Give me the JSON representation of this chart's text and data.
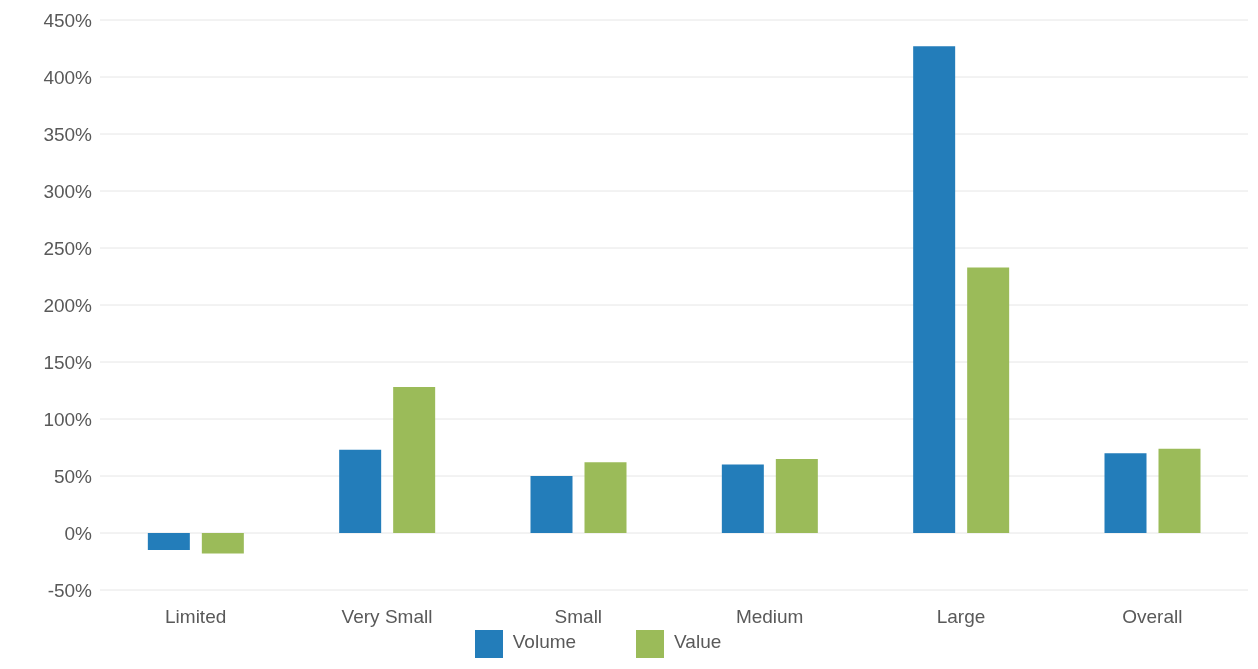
{
  "chart_data": {
    "type": "bar",
    "categories": [
      "Limited",
      "Very Small",
      "Small",
      "Medium",
      "Large",
      "Overall"
    ],
    "series": [
      {
        "name": "Volume",
        "color": "#237dba",
        "values": [
          -15,
          73,
          50,
          60,
          427,
          70
        ]
      },
      {
        "name": "Value",
        "color": "#9bbb59",
        "values": [
          -18,
          128,
          62,
          65,
          233,
          74
        ]
      }
    ],
    "ylim": [
      -50,
      450
    ],
    "yticks": [
      {
        "value": -50,
        "label": "-50%"
      },
      {
        "value": 0,
        "label": "0%"
      },
      {
        "value": 50,
        "label": "50%"
      },
      {
        "value": 100,
        "label": "100%"
      },
      {
        "value": 150,
        "label": "150%"
      },
      {
        "value": 200,
        "label": "200%"
      },
      {
        "value": 250,
        "label": "250%"
      },
      {
        "value": 300,
        "label": "300%"
      },
      {
        "value": 350,
        "label": "350%"
      },
      {
        "value": 400,
        "label": "400%"
      },
      {
        "value": 450,
        "label": "450%"
      }
    ],
    "grid": "y",
    "legend": "bottom"
  }
}
